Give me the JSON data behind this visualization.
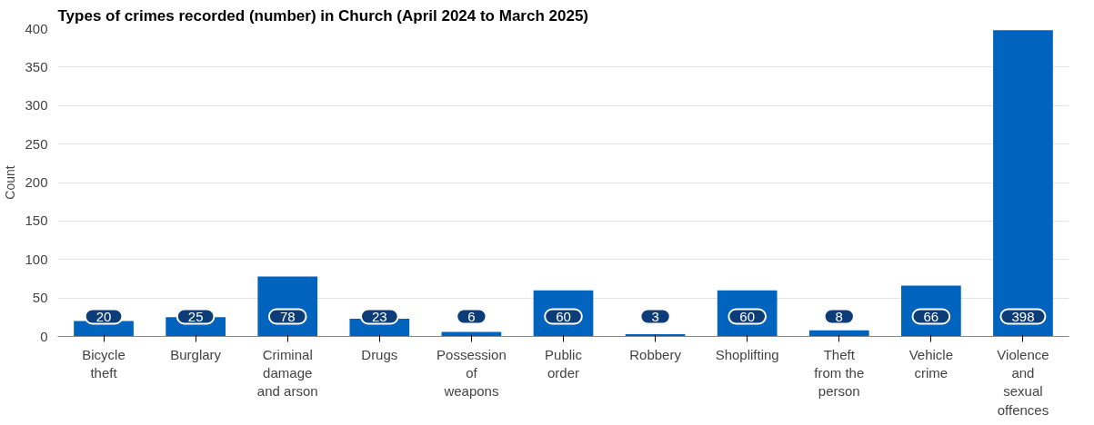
{
  "chart_data": {
    "type": "bar",
    "title": "Types of crimes recorded (number) in Church (April 2024 to March 2025)",
    "ylabel": "Count",
    "categories": [
      "Bicycle theft",
      "Burglary",
      "Criminal damage and arson",
      "Drugs",
      "Possession of weapons",
      "Public order",
      "Robbery",
      "Shoplifting",
      "Theft from the person",
      "Vehicle crime",
      "Violence and sexual offences"
    ],
    "values": [
      20,
      25,
      78,
      23,
      6,
      60,
      3,
      60,
      8,
      66,
      398
    ],
    "color": "#0063be",
    "ylim": [
      0,
      400
    ],
    "yticks": [
      0,
      50,
      100,
      150,
      200,
      250,
      300,
      350,
      400
    ],
    "grid": "y",
    "data_labels": true
  }
}
